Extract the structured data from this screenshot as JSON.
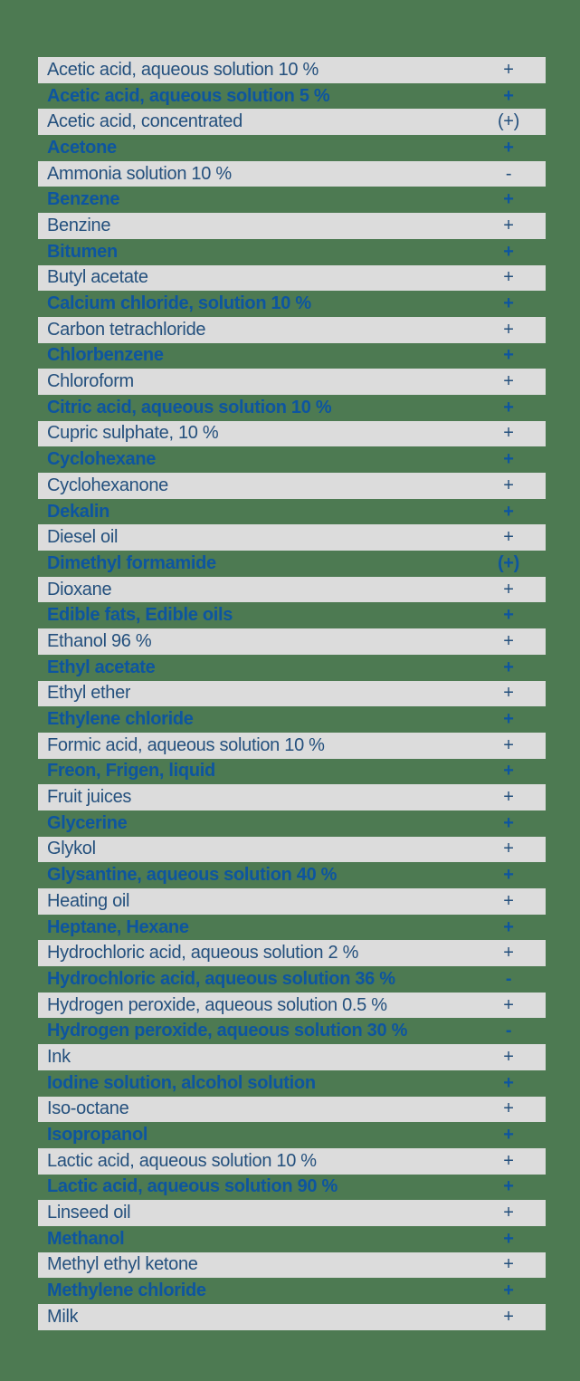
{
  "colors": {
    "page_background": "#4d7a52",
    "row_stripe_gray": "#dcdcdc",
    "text_navy_on_gray": "#24507d",
    "text_blue_on_green": "#0d55a0"
  },
  "table": {
    "rows": [
      {
        "name": "Acetic acid, aqueous solution 10 %",
        "value": "+"
      },
      {
        "name": "Acetic acid, aqueous solution 5 %",
        "value": "+"
      },
      {
        "name": "Acetic acid, concentrated",
        "value": "(+)"
      },
      {
        "name": "Acetone",
        "value": "+"
      },
      {
        "name": "Ammonia solution 10 %",
        "value": "-"
      },
      {
        "name": "Benzene",
        "value": "+"
      },
      {
        "name": "Benzine",
        "value": "+"
      },
      {
        "name": "Bitumen",
        "value": "+"
      },
      {
        "name": "Butyl acetate",
        "value": "+"
      },
      {
        "name": "Calcium chloride, solution 10 %",
        "value": "+"
      },
      {
        "name": "Carbon tetrachloride",
        "value": "+"
      },
      {
        "name": "Chlorbenzene",
        "value": "+"
      },
      {
        "name": "Chloroform",
        "value": "+"
      },
      {
        "name": "Citric acid, aqueous solution 10 %",
        "value": "+"
      },
      {
        "name": "Cupric sulphate, 10 %",
        "value": "+"
      },
      {
        "name": "Cyclohexane",
        "value": "+"
      },
      {
        "name": "Cyclohexanone",
        "value": "+"
      },
      {
        "name": "Dekalin",
        "value": "+"
      },
      {
        "name": "Diesel oil",
        "value": "+"
      },
      {
        "name": "Dimethyl formamide",
        "value": "(+)"
      },
      {
        "name": "Dioxane",
        "value": "+"
      },
      {
        "name": "Edible fats, Edible oils",
        "value": "+"
      },
      {
        "name": "Ethanol 96 %",
        "value": "+"
      },
      {
        "name": "Ethyl acetate",
        "value": "+"
      },
      {
        "name": "Ethyl ether",
        "value": "+"
      },
      {
        "name": "Ethylene chloride",
        "value": "+"
      },
      {
        "name": "Formic acid, aqueous solution 10 %",
        "value": "+"
      },
      {
        "name": "Freon, Frigen, liquid",
        "value": "+"
      },
      {
        "name": "Fruit juices",
        "value": "+"
      },
      {
        "name": "Glycerine",
        "value": "+"
      },
      {
        "name": "Glykol",
        "value": "+"
      },
      {
        "name": "Glysantine, aqueous solution 40 %",
        "value": "+"
      },
      {
        "name": "Heating oil",
        "value": "+"
      },
      {
        "name": "Heptane, Hexane",
        "value": "+"
      },
      {
        "name": "Hydrochloric acid, aqueous solution 2 %",
        "value": "+"
      },
      {
        "name": "Hydrochloric acid, aqueous solution 36 %",
        "value": "-"
      },
      {
        "name": "Hydrogen peroxide, aqueous solution 0.5 %",
        "value": "+"
      },
      {
        "name": "Hydrogen peroxide, aqueous solution 30 %",
        "value": "-"
      },
      {
        "name": "Ink",
        "value": "+"
      },
      {
        "name": "Iodine solution, alcohol solution",
        "value": "+"
      },
      {
        "name": "Iso-octane",
        "value": "+"
      },
      {
        "name": "Isopropanol",
        "value": "+"
      },
      {
        "name": "Lactic acid, aqueous solution 10 %",
        "value": "+"
      },
      {
        "name": "Lactic acid, aqueous solution 90 %",
        "value": "+"
      },
      {
        "name": "Linseed oil",
        "value": "+"
      },
      {
        "name": "Methanol",
        "value": "+"
      },
      {
        "name": "Methyl ethyl ketone",
        "value": "+"
      },
      {
        "name": "Methylene chloride",
        "value": "+"
      },
      {
        "name": "Milk",
        "value": "+"
      }
    ]
  }
}
